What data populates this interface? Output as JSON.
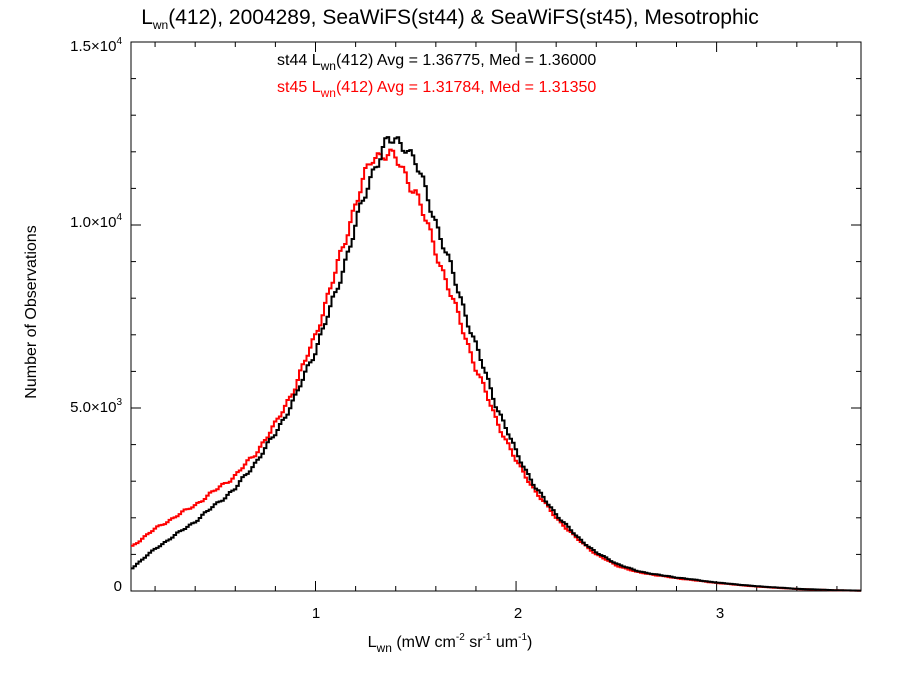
{
  "chart_data": {
    "type": "line",
    "title": {
      "main": "L",
      "main_sub": "wn",
      "rest": "(412), 2004289, SeaWiFS(st44) & SeaWiFS(st45), Mesotrophic"
    },
    "annotations": [
      {
        "pre": "st44 L",
        "sub": "wn",
        "post": "(412) Avg = 1.36775, Med = 1.36000",
        "color": "#000000"
      },
      {
        "pre": "st45 L",
        "sub": "wn",
        "post": "(412) Avg = 1.31784, Med = 1.31350",
        "color": "#ff0000"
      }
    ],
    "xlabel": {
      "base": "L",
      "base_sub": "wn",
      "units_pre": " (mW cm",
      "exp1": "-2",
      "mid1": " sr",
      "exp2": "-1",
      "mid2": " um",
      "exp3": "-1",
      "end": ")"
    },
    "ylabel": "Number of Observations",
    "xlim": [
      0.08,
      3.72
    ],
    "ylim": [
      0,
      15000
    ],
    "xticks": [
      {
        "value": 1,
        "label": "1"
      },
      {
        "value": 2,
        "label": "2"
      },
      {
        "value": 3,
        "label": "3"
      }
    ],
    "yticks": [
      {
        "value": 0,
        "label": "0",
        "exp": ""
      },
      {
        "value": 5000,
        "label": "5.0×10",
        "exp": "3"
      },
      {
        "value": 10000,
        "label": "1.0×10",
        "exp": "4"
      },
      {
        "value": 15000,
        "label": "1.5×10",
        "exp": "4"
      }
    ],
    "series": [
      {
        "name": "st44",
        "color": "#000000",
        "points": [
          [
            0.08,
            600
          ],
          [
            0.2,
            1150
          ],
          [
            0.4,
            1900
          ],
          [
            0.6,
            2800
          ],
          [
            0.7,
            3500
          ],
          [
            0.8,
            4300
          ],
          [
            0.9,
            5300
          ],
          [
            1.0,
            6600
          ],
          [
            1.1,
            8100
          ],
          [
            1.2,
            10000
          ],
          [
            1.3,
            11700
          ],
          [
            1.36,
            12300
          ],
          [
            1.45,
            12200
          ],
          [
            1.5,
            11700
          ],
          [
            1.6,
            10100
          ],
          [
            1.7,
            8400
          ],
          [
            1.8,
            6700
          ],
          [
            1.9,
            5100
          ],
          [
            2.0,
            3800
          ],
          [
            2.1,
            2800
          ],
          [
            2.2,
            2100
          ],
          [
            2.3,
            1500
          ],
          [
            2.4,
            1050
          ],
          [
            2.5,
            750
          ],
          [
            2.6,
            550
          ],
          [
            2.7,
            450
          ],
          [
            2.8,
            370
          ],
          [
            3.0,
            230
          ],
          [
            3.2,
            130
          ],
          [
            3.4,
            60
          ],
          [
            3.6,
            20
          ],
          [
            3.72,
            10
          ]
        ]
      },
      {
        "name": "st45",
        "color": "#ff0000",
        "points": [
          [
            0.08,
            1200
          ],
          [
            0.2,
            1700
          ],
          [
            0.4,
            2350
          ],
          [
            0.6,
            3150
          ],
          [
            0.7,
            3750
          ],
          [
            0.8,
            4550
          ],
          [
            0.9,
            5600
          ],
          [
            1.0,
            7000
          ],
          [
            1.1,
            8700
          ],
          [
            1.2,
            10600
          ],
          [
            1.28,
            11800
          ],
          [
            1.34,
            12000
          ],
          [
            1.4,
            11800
          ],
          [
            1.5,
            10900
          ],
          [
            1.6,
            9300
          ],
          [
            1.7,
            7700
          ],
          [
            1.8,
            6100
          ],
          [
            1.9,
            4700
          ],
          [
            2.0,
            3550
          ],
          [
            2.1,
            2700
          ],
          [
            2.2,
            2000
          ],
          [
            2.3,
            1450
          ],
          [
            2.4,
            1000
          ],
          [
            2.5,
            700
          ],
          [
            2.6,
            520
          ],
          [
            2.7,
            430
          ],
          [
            2.8,
            350
          ],
          [
            3.0,
            220
          ],
          [
            3.2,
            120
          ],
          [
            3.4,
            55
          ],
          [
            3.6,
            18
          ],
          [
            3.72,
            8
          ]
        ]
      }
    ]
  }
}
